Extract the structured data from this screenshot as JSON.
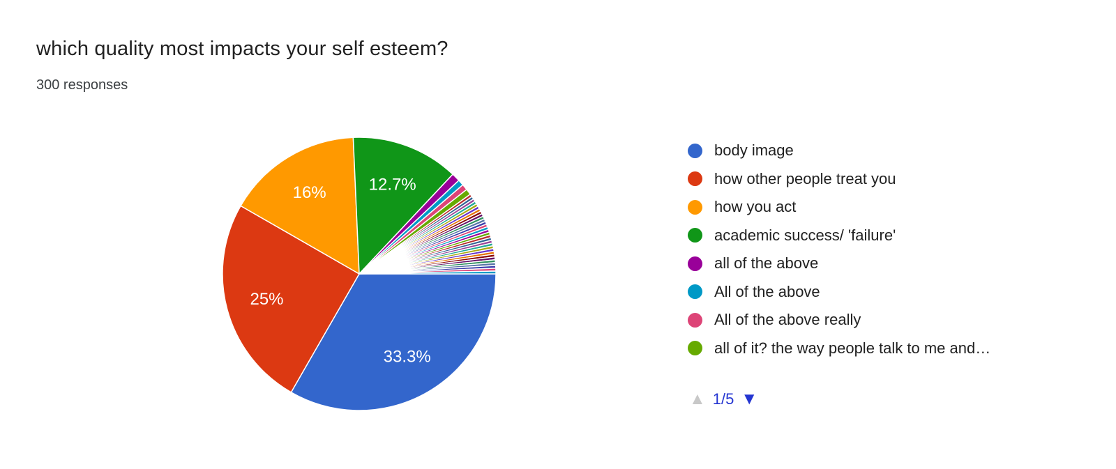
{
  "header": {
    "title": "which quality most impacts your self esteem?",
    "subtitle": "300 responses"
  },
  "chart_data": {
    "type": "pie",
    "title": "which quality most impacts your self esteem?",
    "total_responses": 300,
    "start_angle_deg": 90,
    "direction": "clockwise",
    "slices": [
      {
        "label": "body image",
        "pct": 33.3,
        "color": "#3366CC",
        "data_label": "33.3%"
      },
      {
        "label": "how other people treat you",
        "pct": 25,
        "color": "#DC3912",
        "data_label": "25%"
      },
      {
        "label": "how you act",
        "pct": 16,
        "color": "#FF9900",
        "data_label": "16%"
      },
      {
        "label": "academic success/ 'failure'",
        "pct": 12.7,
        "color": "#109618",
        "data_label": "12.7%"
      },
      {
        "label": "all of the above",
        "pct": 1.0,
        "color": "#990099",
        "data_label": ""
      },
      {
        "label": "All of the above",
        "pct": 0.7,
        "color": "#0099C6",
        "data_label": ""
      },
      {
        "label": "All of the above really",
        "pct": 0.7,
        "color": "#DD4477",
        "data_label": ""
      },
      {
        "label": "all of it? the way people talk to me and…",
        "pct": 0.7,
        "color": "#66AA00",
        "data_label": ""
      }
    ],
    "other_tiny_slices": {
      "count": 30,
      "pct_each": 0.33,
      "colors": [
        "#B82E2E",
        "#316395",
        "#994499",
        "#22AA99",
        "#AAAA11",
        "#6633CC",
        "#E67300",
        "#8B0707",
        "#651067",
        "#329262",
        "#5574A6",
        "#3B3EAC",
        "#DD4477",
        "#0099C6",
        "#990099",
        "#66AA00"
      ]
    },
    "slice_label_color": "#ffffff"
  },
  "legend": {
    "items": [
      {
        "label": "body image",
        "color": "#3366CC"
      },
      {
        "label": "how other people treat you",
        "color": "#DC3912"
      },
      {
        "label": "how you act",
        "color": "#FF9900"
      },
      {
        "label": "academic success/ 'failure'",
        "color": "#109618"
      },
      {
        "label": "all of the above",
        "color": "#990099"
      },
      {
        "label": "All of the above",
        "color": "#0099C6"
      },
      {
        "label": "All of the above really",
        "color": "#DD4477"
      },
      {
        "label": "all of it? the way people talk to me and…",
        "color": "#66AA00"
      }
    ]
  },
  "pager": {
    "up_icon": "▲",
    "label": "1/5",
    "down_icon": "▼",
    "up_color": "#c8c8c8",
    "accent_color": "#2435d1"
  }
}
